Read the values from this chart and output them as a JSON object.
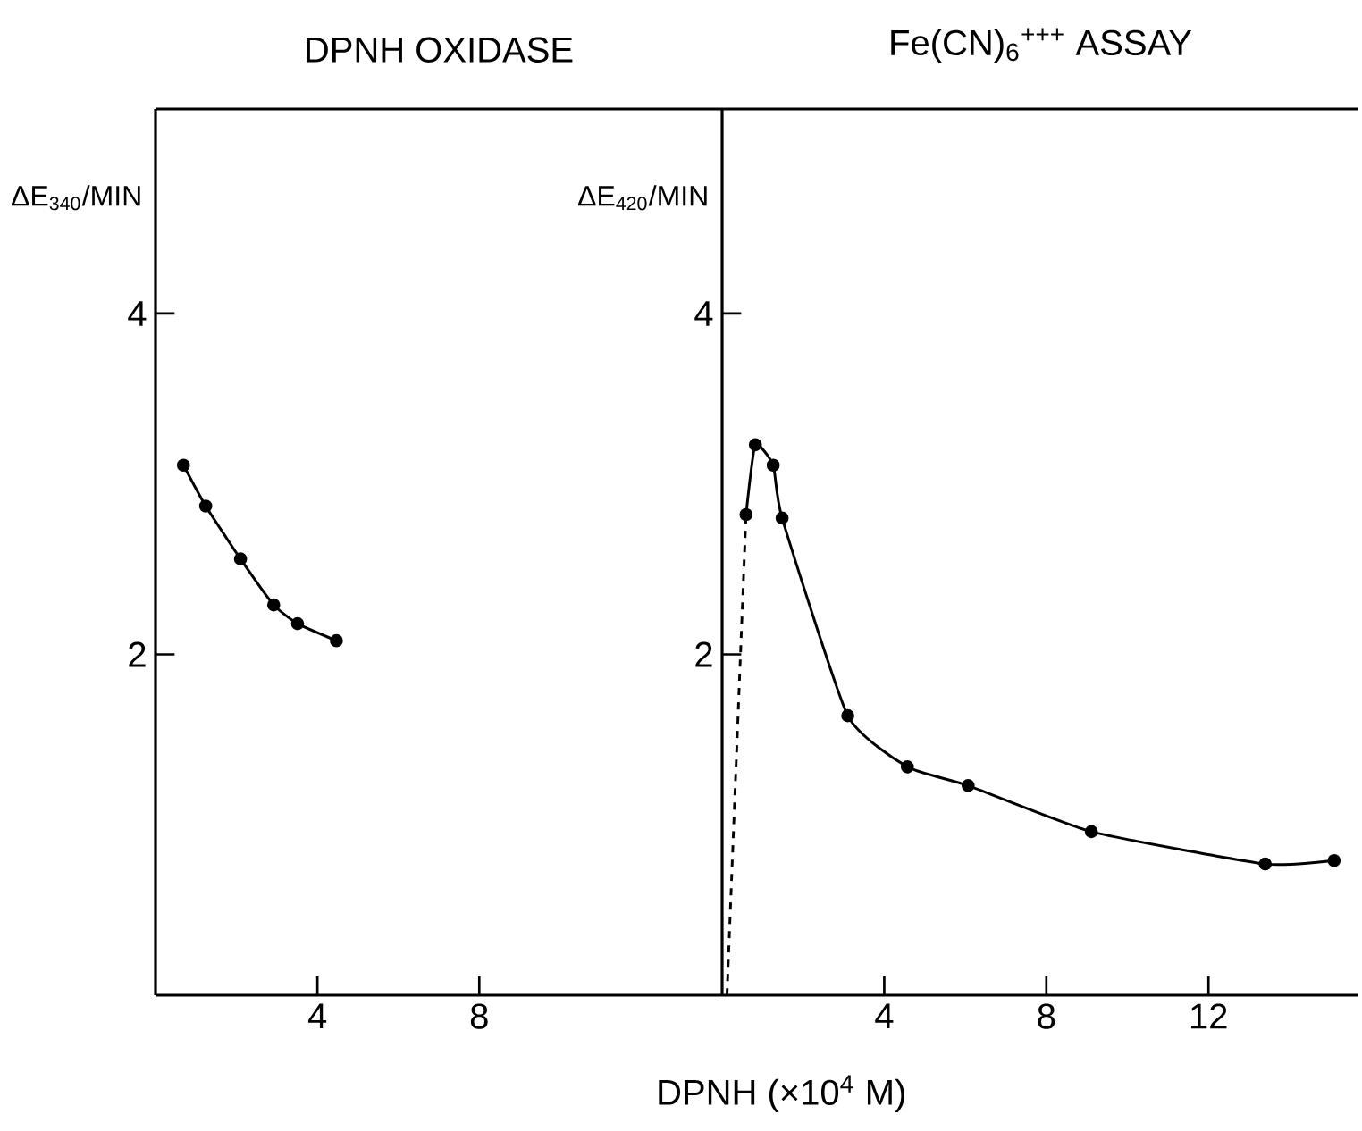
{
  "chart_data": [
    {
      "type": "line",
      "title": "DPNH OXIDASE",
      "ylabel": "ΔE$_{340}$/MIN",
      "xlim": [
        0,
        14
      ],
      "ylim": [
        0,
        5.2
      ],
      "xticks": [
        4,
        8
      ],
      "yticks": [
        2,
        4
      ],
      "marker": "circle",
      "line_style": "solid",
      "series": [
        {
          "color": "#000000",
          "x": [
            0.69,
            1.24,
            2.1,
            2.92,
            3.51,
            4.47
          ],
          "values": [
            3.11,
            2.87,
            2.56,
            2.29,
            2.18,
            2.08
          ]
        }
      ]
    },
    {
      "type": "line",
      "title": "Fe(CN)$_{6}$$^{+++}$ ASSAY",
      "ylabel": "ΔE$_{420}$/MIN",
      "xlabel": "DPNH (×10$^{4}$ M)",
      "xlim": [
        0,
        15.7
      ],
      "ylim": [
        0,
        5.2
      ],
      "xticks": [
        4,
        8,
        12
      ],
      "yticks": [
        2,
        4
      ],
      "marker": "circle",
      "line_style": "solid",
      "series": [
        {
          "color": "#000000",
          "x": [
            0.59,
            0.82,
            1.26,
            1.48,
            3.1,
            4.57,
            6.07,
            9.11,
            13.4,
            15.1
          ],
          "values": [
            2.82,
            3.23,
            3.11,
            2.8,
            1.64,
            1.34,
            1.23,
            0.96,
            0.77,
            0.79
          ]
        },
        {
          "color": "#000000",
          "line_style": "dashed",
          "marker": "none",
          "x": [
            0.12,
            0.59
          ],
          "values": [
            0,
            2.82
          ]
        }
      ]
    }
  ]
}
